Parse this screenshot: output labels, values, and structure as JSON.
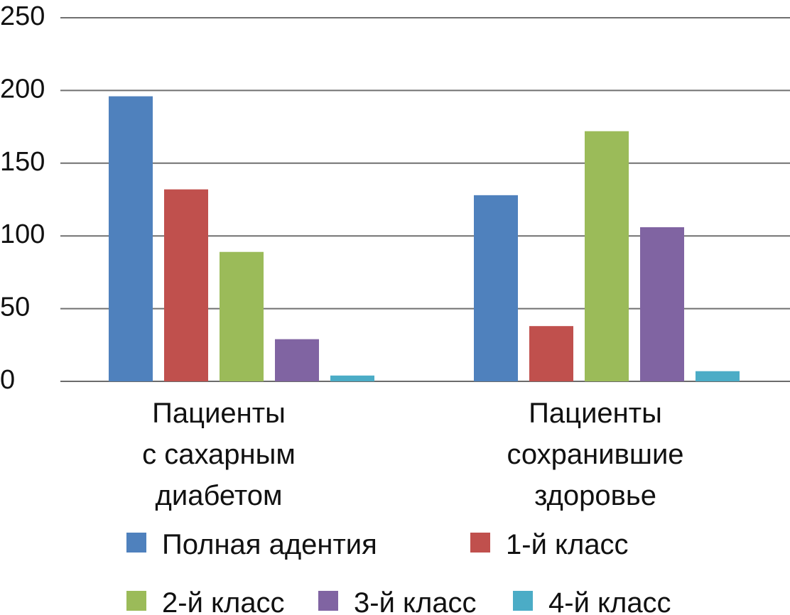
{
  "chart_data": {
    "type": "bar",
    "title": "",
    "xlabel": "",
    "ylabel": "",
    "ylim": [
      0,
      250
    ],
    "yticks": [
      0,
      50,
      100,
      150,
      200,
      250
    ],
    "grid": true,
    "legend_position": "bottom",
    "categories": [
      [
        "Пациенты",
        "с сахарным",
        "диабетом"
      ],
      [
        "Пациенты",
        "сохранившие",
        "здоровье"
      ]
    ],
    "series": [
      {
        "name": "Полная адентия",
        "color": "#4F81BD",
        "values": [
          196,
          128
        ]
      },
      {
        "name": "1-й класс",
        "color": "#C0504D",
        "values": [
          132,
          38
        ]
      },
      {
        "name": "2-й класс",
        "color": "#9BBB59",
        "values": [
          89,
          172
        ]
      },
      {
        "name": "3-й класс",
        "color": "#8064A2",
        "values": [
          29,
          106
        ]
      },
      {
        "name": "4-й класс",
        "color": "#4BACC6",
        "values": [
          4,
          7
        ]
      }
    ]
  }
}
